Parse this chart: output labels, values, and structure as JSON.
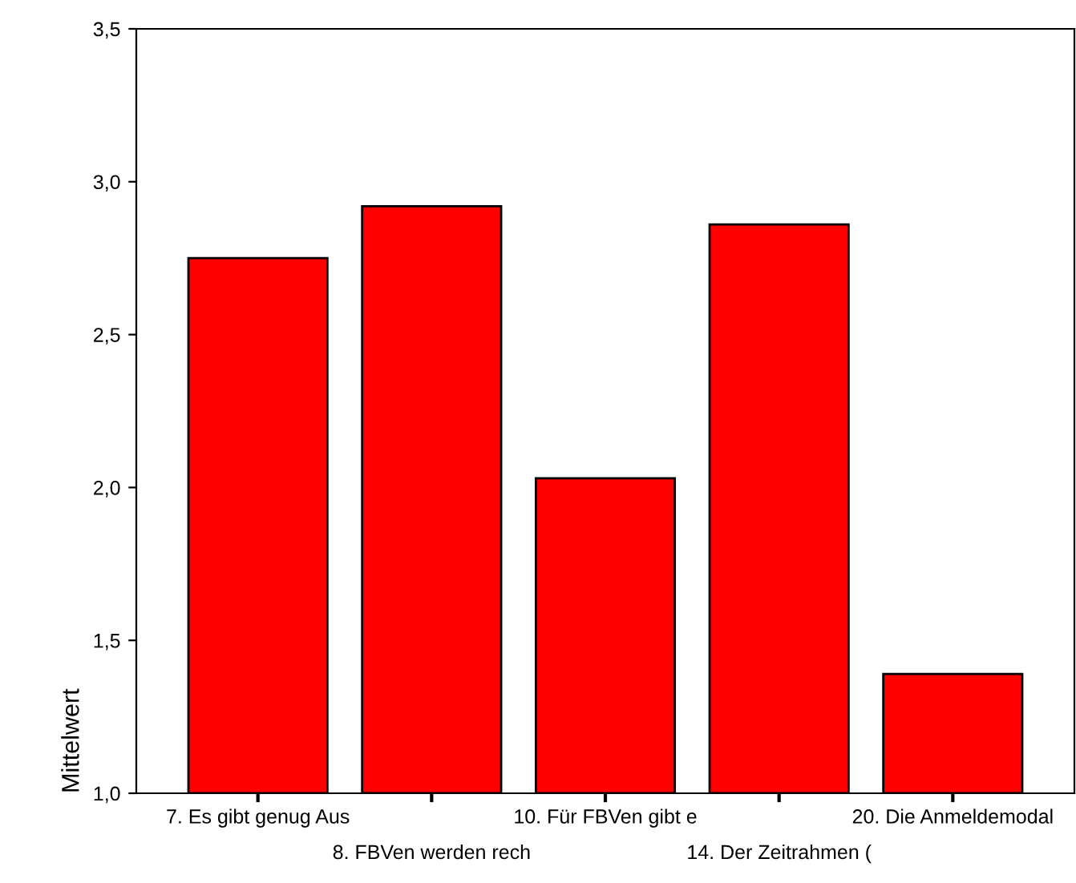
{
  "chart_data": {
    "type": "bar",
    "ylabel": "Mittelwert",
    "categories": [
      "7. Es gibt genug Aus",
      "8. FBVen werden rech",
      "10. Für FBVen gibt e",
      "14. Der Zeitrahmen (",
      "20. Die Anmeldemodal"
    ],
    "values": [
      2.75,
      2.92,
      2.03,
      2.86,
      1.39
    ],
    "color": "#ff0000",
    "ylim": [
      1.0,
      3.5
    ],
    "yticks": [
      {
        "value": 1.0,
        "label": "1,0"
      },
      {
        "value": 1.5,
        "label": "1,5"
      },
      {
        "value": 2.0,
        "label": "2,0"
      },
      {
        "value": 2.5,
        "label": "2,5"
      },
      {
        "value": 3.0,
        "label": "3,0"
      },
      {
        "value": 3.5,
        "label": "3,5"
      }
    ],
    "grid": false,
    "legend": false
  }
}
